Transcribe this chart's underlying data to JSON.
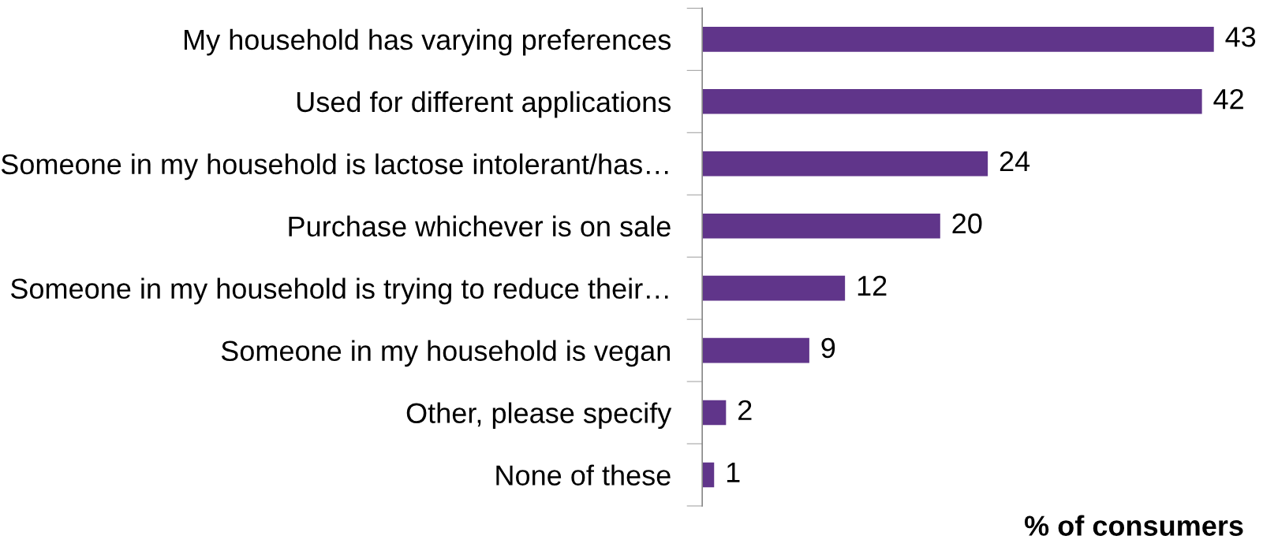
{
  "chart_data": {
    "type": "bar",
    "orientation": "horizontal",
    "categories": [
      "My household has varying preferences",
      "Used for different applications",
      "Someone in my household is lactose intolerant/has…",
      "Purchase whichever is on sale",
      "Someone in my household is trying to reduce their…",
      "Someone in my household is vegan",
      "Other, please specify",
      "None of these"
    ],
    "values": [
      43,
      42,
      24,
      20,
      12,
      9,
      2,
      1
    ],
    "color": "#60358a",
    "xlabel": "% of consumers",
    "data_labels": true,
    "grid": false,
    "legend": false
  }
}
